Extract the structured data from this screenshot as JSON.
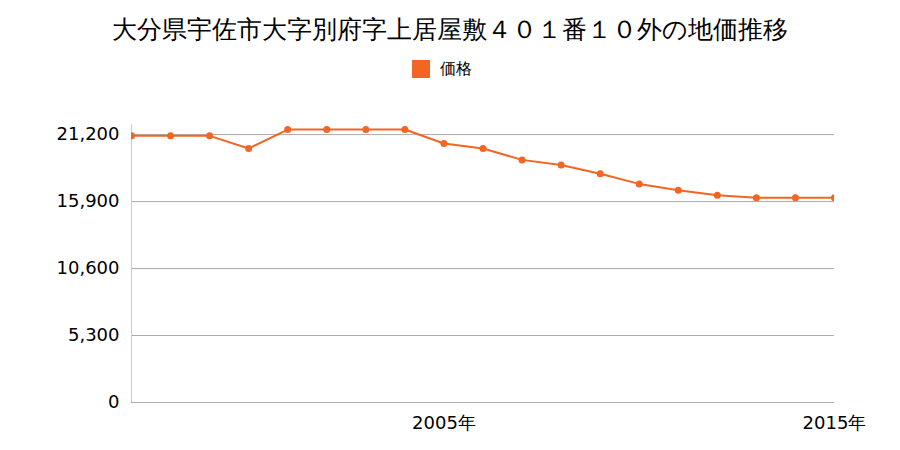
{
  "chart_data": {
    "type": "line",
    "title": "大分県宇佐市大字別府字上居屋敷４０１番１０外の地価推移",
    "x": [
      1997,
      1998,
      1999,
      2000,
      2001,
      2002,
      2003,
      2004,
      2005,
      2006,
      2007,
      2008,
      2009,
      2010,
      2011,
      2012,
      2013,
      2014,
      2015
    ],
    "series": [
      {
        "name": "価格",
        "color": "#f26522",
        "marker": "circle",
        "values": [
          21100,
          21100,
          21100,
          20100,
          21600,
          21600,
          21600,
          21600,
          20500,
          20100,
          19200,
          18800,
          18100,
          17300,
          16800,
          16400,
          16200,
          16200,
          16200
        ]
      }
    ],
    "xlim": [
      1997,
      2015
    ],
    "xticks": [
      {
        "value": 2005,
        "label": "2005年"
      },
      {
        "value": 2015,
        "label": "2015年"
      }
    ],
    "ylim": [
      0,
      22000
    ],
    "yticks": [
      0,
      {
        "value": 5300,
        "label": "5,300"
      },
      {
        "value": 10600,
        "label": "10,600"
      },
      {
        "value": 15900,
        "label": "15,900"
      },
      {
        "value": 21200,
        "label": "21,200"
      }
    ],
    "grid": true,
    "legend": "top"
  }
}
